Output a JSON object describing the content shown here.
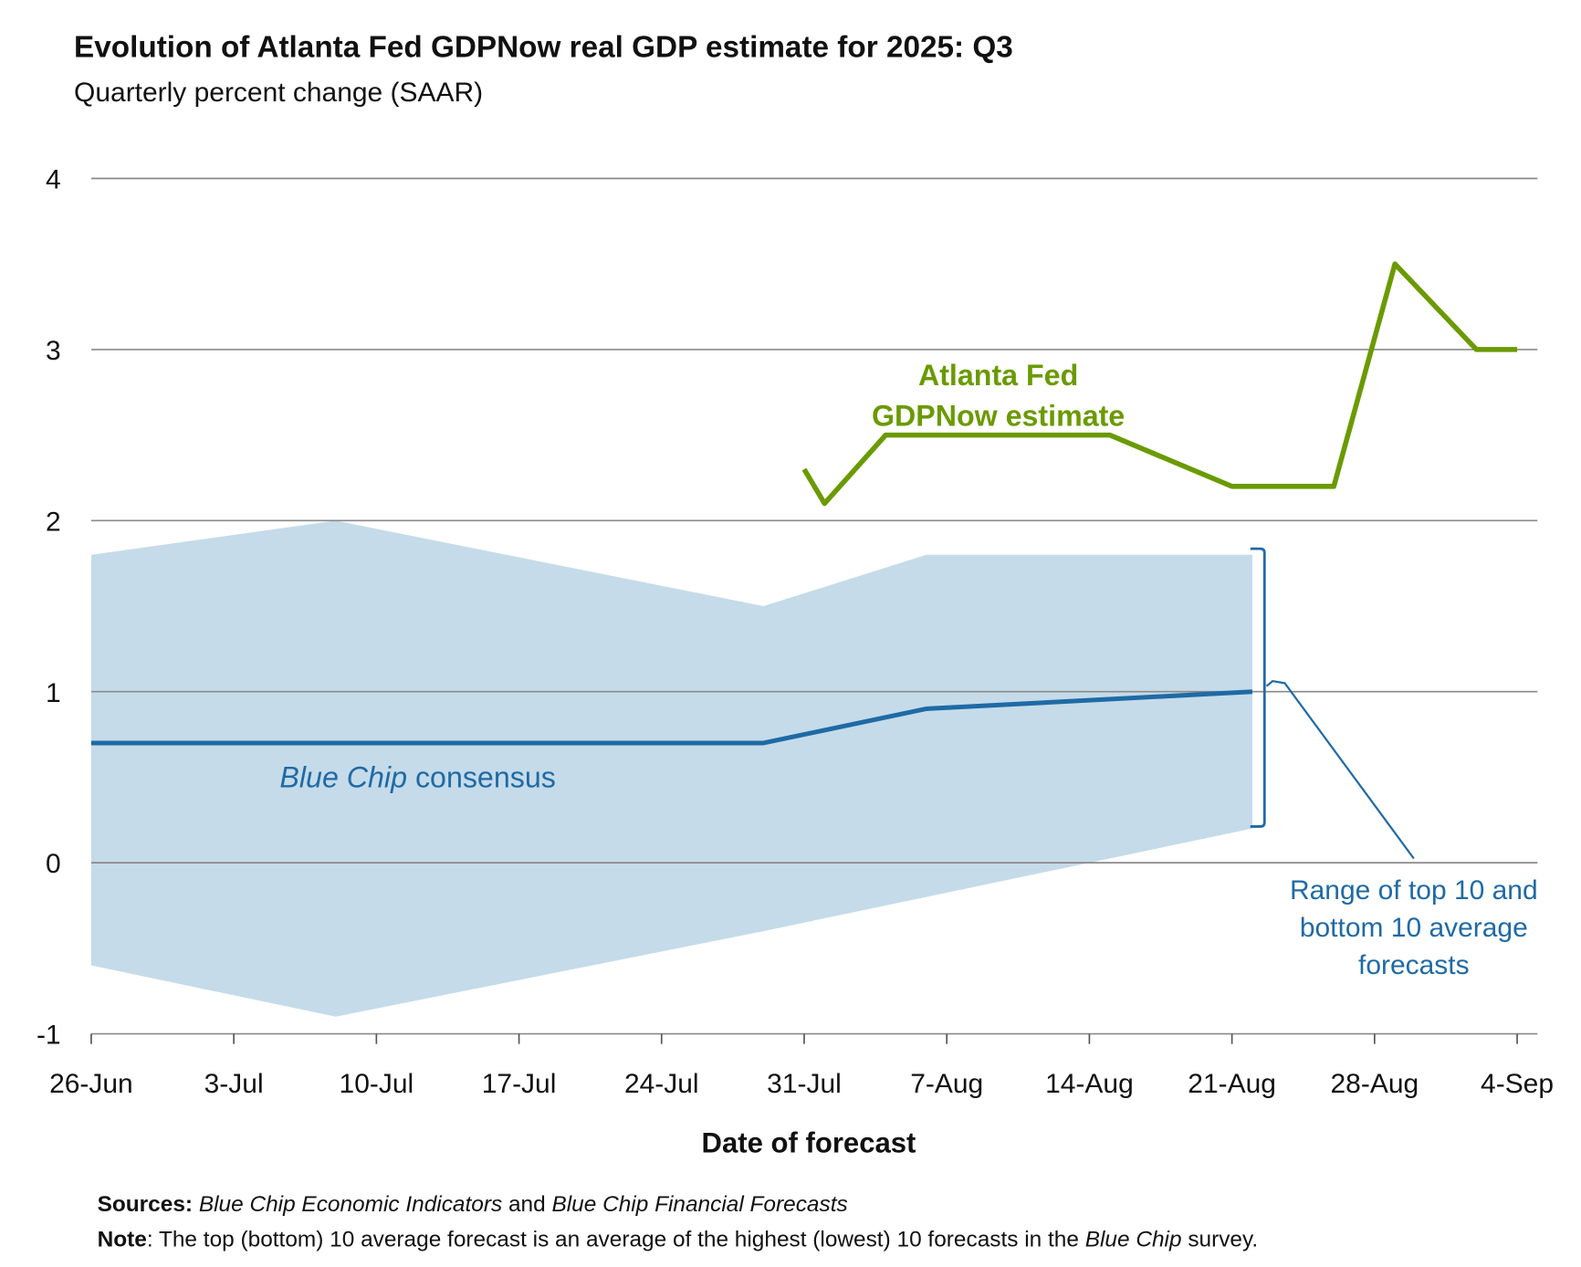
{
  "chart_data": {
    "type": "line",
    "title": "Evolution of Atlanta Fed GDPNow real GDP estimate for 2025: Q3",
    "subtitle": "Quarterly percent change (SAAR)",
    "xlabel": "Date of forecast",
    "ylabel": "",
    "ylim": [
      -1,
      4
    ],
    "yticks": [
      "4",
      "3",
      "2",
      "1",
      "0",
      "-1"
    ],
    "ytick_values": [
      4,
      3,
      2,
      1,
      0,
      -1
    ],
    "x_unit": "days since 26-Jun-2025",
    "xlim": [
      0,
      70
    ],
    "xticks": [
      "26-Jun",
      "3-Jul",
      "10-Jul",
      "17-Jul",
      "24-Jul",
      "31-Jul",
      "7-Aug",
      "14-Aug",
      "21-Aug",
      "28-Aug",
      "4-Sep"
    ],
    "xtick_values": [
      0,
      7,
      14,
      21,
      28,
      35,
      42,
      49,
      56,
      63,
      70
    ],
    "grid": true,
    "series": [
      {
        "name": "Atlanta Fed GDPNow estimate",
        "label_lines": [
          "Atlanta Fed",
          "GDPNow estimate"
        ],
        "color": "#6a9a00",
        "x": [
          35,
          36,
          39,
          50,
          56,
          61,
          64,
          68,
          70
        ],
        "values": [
          2.3,
          2.1,
          2.5,
          2.5,
          2.2,
          2.2,
          3.5,
          3.0,
          3.0
        ]
      },
      {
        "name": "Blue Chip consensus",
        "label_italic": "Blue Chip",
        "label_rest": " consensus",
        "color": "#1f6aa5",
        "x": [
          0,
          33,
          41,
          57
        ],
        "values": [
          0.7,
          0.7,
          0.9,
          1.0
        ]
      }
    ],
    "band": {
      "name": "Range of top 10 and bottom 10 average forecasts",
      "label_lines": [
        "Range of top 10 and",
        "bottom 10 average",
        "forecasts"
      ],
      "color": "#c5dbe9",
      "x": [
        0,
        12,
        33,
        41,
        57
      ],
      "upper": [
        1.8,
        2.0,
        1.5,
        1.8,
        1.8
      ],
      "lower": [
        -0.6,
        -0.9,
        -0.4,
        -0.2,
        0.2
      ]
    }
  },
  "footer": {
    "sources_label": "Sources:",
    "sources_italic_1": "Blue Chip Economic Indicators",
    "sources_and": " and ",
    "sources_italic_2": "Blue Chip Financial Forecasts",
    "note_label": "Note",
    "note_text": ": The top (bottom) 10 average forecast is an average of the highest (lowest) 10 forecasts in the ",
    "note_italic": "Blue Chip",
    "note_end": " survey."
  }
}
